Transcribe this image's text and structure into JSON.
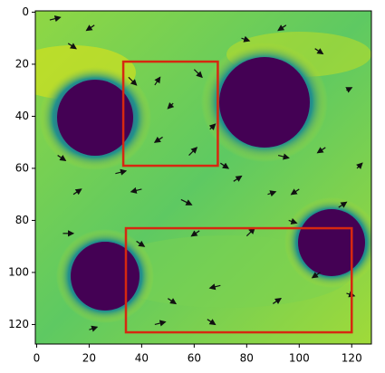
{
  "chart_data": {
    "type": "heatmap",
    "xlim": [
      -0.5,
      127.5
    ],
    "ylim": [
      127.5,
      -0.5
    ],
    "xticks": [
      0,
      20,
      40,
      60,
      80,
      100,
      120
    ],
    "yticks": [
      0,
      20,
      40,
      60,
      80,
      100,
      120
    ],
    "rectangles": [
      {
        "x": 33,
        "y": 19,
        "width": 36,
        "height": 40,
        "color": "#d62810"
      },
      {
        "x": 34,
        "y": 83,
        "width": 86,
        "height": 40,
        "color": "#d62810"
      }
    ],
    "quiver": {
      "color": "#111111",
      "x": [
        5,
        12,
        22,
        35,
        45,
        52,
        60,
        66,
        78,
        95,
        106,
        118,
        8,
        30,
        48,
        58,
        70,
        92,
        110,
        122,
        14,
        40,
        55,
        75,
        88,
        100,
        115,
        10,
        38,
        62,
        80,
        96,
        108,
        20,
        50,
        70,
        90,
        118,
        45,
        65
      ],
      "y": [
        3,
        12,
        5,
        25,
        28,
        35,
        22,
        45,
        10,
        5,
        14,
        30,
        55,
        62,
        48,
        55,
        58,
        55,
        52,
        60,
        70,
        68,
        72,
        65,
        70,
        68,
        75,
        85,
        88,
        84,
        86,
        80,
        100,
        122,
        110,
        105,
        112,
        108,
        120,
        118
      ],
      "u": [
        4,
        3,
        -3,
        3,
        2,
        -2,
        3,
        2,
        3,
        -3,
        3,
        2,
        3,
        4,
        -3,
        3,
        3,
        4,
        -3,
        2,
        3,
        -4,
        4,
        3,
        3,
        -3,
        3,
        4,
        3,
        -3,
        3,
        3,
        -3,
        3,
        3,
        -4,
        3,
        3,
        4,
        3
      ],
      "v": [
        -1,
        2,
        2,
        3,
        -3,
        2,
        3,
        -2,
        1,
        2,
        2,
        -1,
        2,
        -1,
        2,
        -3,
        2,
        1,
        2,
        -2,
        -2,
        1,
        2,
        -2,
        -1,
        2,
        -2,
        0,
        2,
        2,
        -3,
        1,
        2,
        -1,
        2,
        1,
        -2,
        1,
        -1,
        2
      ]
    }
  }
}
